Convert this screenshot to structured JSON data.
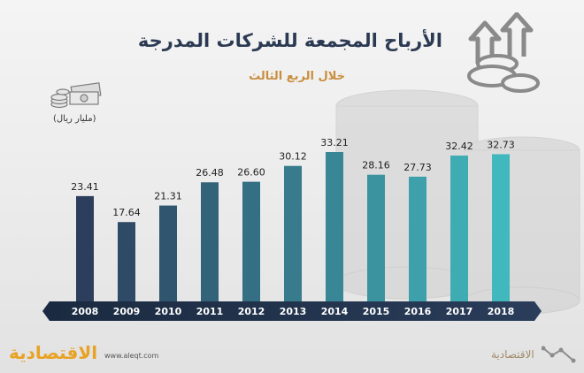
{
  "header": {
    "title": "الأرباح المجمعة للشركات المدرجة",
    "subtitle": "خلال الربع الثالث",
    "unit": "(مليار ريال)"
  },
  "footer": {
    "logo_text": "الاقتصادية",
    "url": "www.aleqt.com",
    "brand_text": "الاقتصادية"
  },
  "icons": {
    "hero": "coins-arrows-up-icon",
    "unit": "banknotes-coins-icon",
    "brand": "line-chart-logo-icon"
  },
  "colors": {
    "bar_start": "#2c3e5c",
    "bar_end": "#41b8bd",
    "axis_band": "#1f2e45",
    "title": "#2b3a52",
    "subtitle": "#c98d3e",
    "logo": "#e8a224"
  },
  "chart_data": {
    "type": "bar",
    "title": "الأرباح المجمعة للشركات المدرجة",
    "subtitle": "خلال الربع الثالث",
    "ylabel": "(مليار ريال)",
    "categories": [
      "2008",
      "2009",
      "2010",
      "2011",
      "2012",
      "2013",
      "2014",
      "2015",
      "2016",
      "2017",
      "2018"
    ],
    "values": [
      23.41,
      17.64,
      21.31,
      26.48,
      26.6,
      30.12,
      33.21,
      28.16,
      27.73,
      32.42,
      32.73
    ],
    "value_labels": [
      "23.41",
      "17.64",
      "21.31",
      "26.48",
      "26.60",
      "30.12",
      "33.21",
      "28.16",
      "27.73",
      "32.42",
      "32.73"
    ],
    "ylim": [
      0,
      35
    ],
    "grid": false,
    "legend": "none"
  }
}
